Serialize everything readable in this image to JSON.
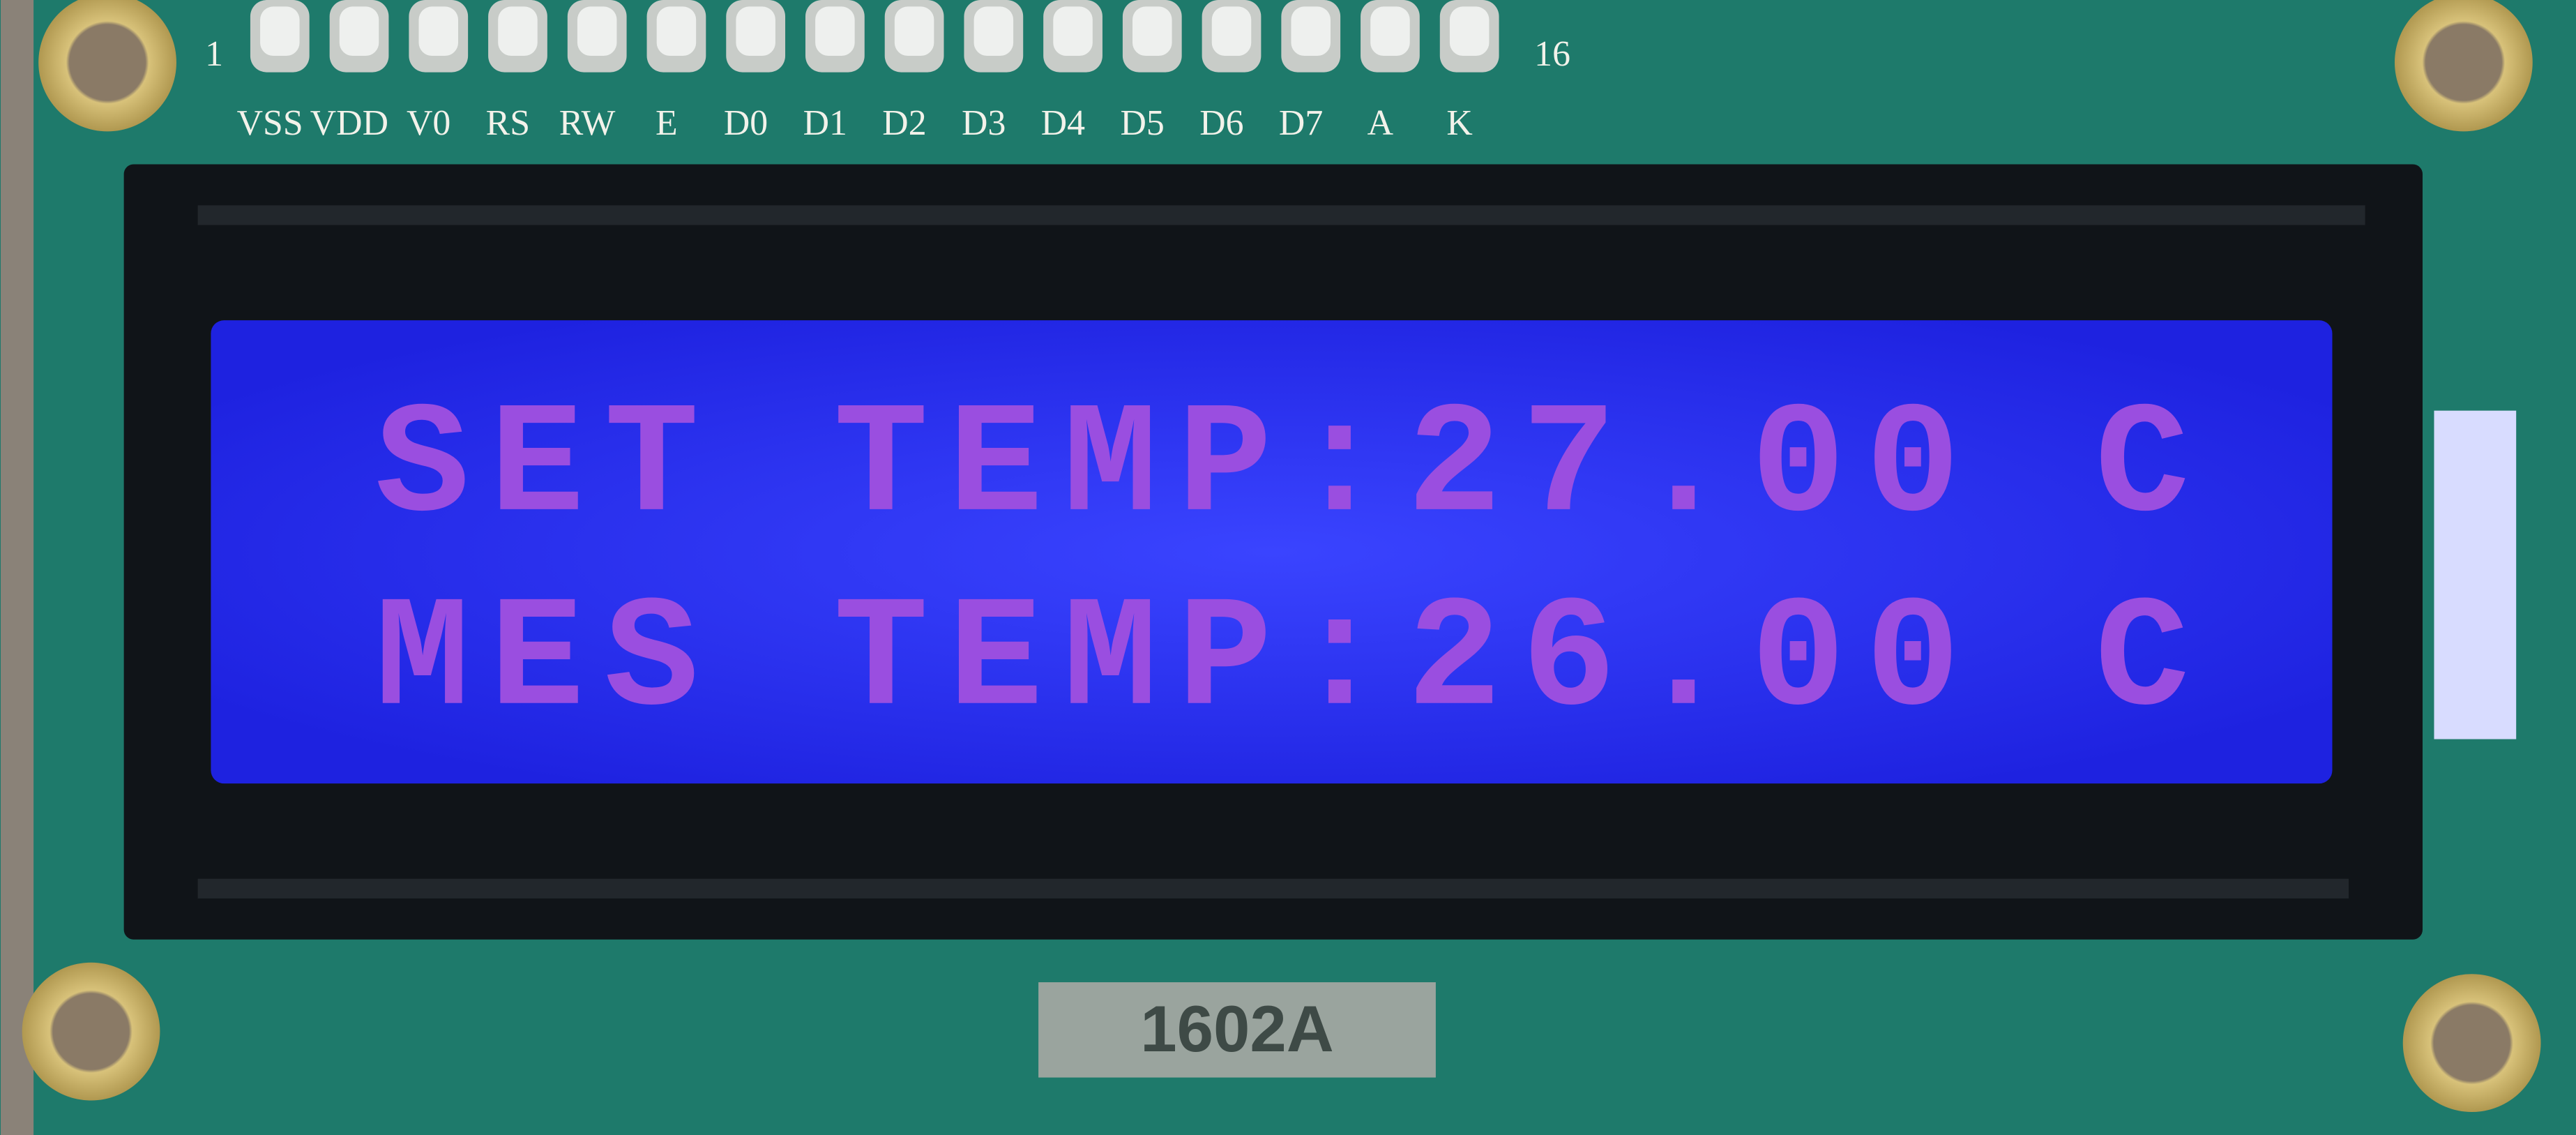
{
  "board": {
    "pin_first": "1",
    "pin_last": "16",
    "pins": [
      "VSS",
      "VDD",
      "V0",
      "RS",
      "RW",
      "E",
      "D0",
      "D1",
      "D2",
      "D3",
      "D4",
      "D5",
      "D6",
      "D7",
      "A",
      "K"
    ],
    "model": "1602A"
  },
  "display": {
    "lines": [
      "SET TEMP:27.00 C",
      "MES TEMP:26.00 C"
    ]
  }
}
